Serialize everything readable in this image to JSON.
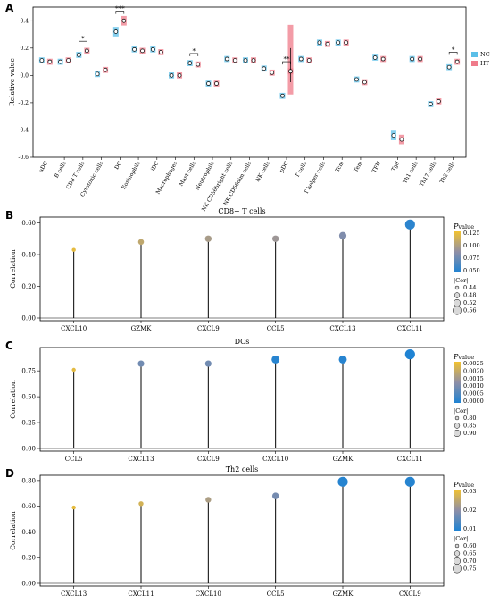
{
  "chart_data": [
    {
      "panel": "A",
      "type": "box",
      "ylabel": "Relative value",
      "ylim": [
        -0.6,
        0.5
      ],
      "yticks": [
        -0.6,
        -0.4,
        -0.2,
        0.0,
        0.2,
        0.4
      ],
      "categories": [
        "aDC",
        "B cells",
        "CD8 T cells",
        "Cytotoxic cells",
        "DC",
        "Eosinophils",
        "iDC",
        "Macrophages",
        "Mast cells",
        "Neutrophils",
        "NK CD56bright cells",
        "NK CD56dim cells",
        "NK cells",
        "pDC",
        "T cells",
        "T helper cells",
        "Tcm",
        "Tem",
        "TFH",
        "Tgd",
        "Th1 cells",
        "Th17 cells",
        "Th2 cells"
      ],
      "legend": {
        "position": "right",
        "entries": [
          "NC",
          "HT"
        ]
      },
      "colors": {
        "NC": "#5bbfe8",
        "HT": "#ef7b8a"
      },
      "series": [
        {
          "name": "NC",
          "values": [
            0.11,
            0.1,
            0.15,
            0.01,
            0.32,
            0.19,
            0.19,
            0.0,
            0.09,
            -0.06,
            0.12,
            0.11,
            0.05,
            -0.15,
            0.12,
            0.24,
            0.24,
            -0.03,
            0.13,
            -0.44,
            0.12,
            -0.21,
            0.06
          ]
        },
        {
          "name": "HT",
          "values": [
            0.1,
            0.11,
            0.18,
            0.04,
            0.4,
            0.18,
            0.17,
            0.0,
            0.08,
            -0.06,
            0.11,
            0.11,
            0.02,
            0.03,
            0.11,
            0.23,
            0.24,
            -0.05,
            0.12,
            -0.47,
            0.12,
            -0.19,
            0.1
          ]
        }
      ],
      "significance": [
        {
          "category": "CD8 T cells",
          "label": "*"
        },
        {
          "category": "DC",
          "label": "***"
        },
        {
          "category": "Mast cells",
          "label": "*"
        },
        {
          "category": "pDC",
          "label": "**"
        },
        {
          "category": "Th2 cells",
          "label": "*"
        }
      ]
    },
    {
      "panel": "B",
      "type": "lollipop",
      "title": "CD8+ T cells",
      "ylabel": "Correlation",
      "ylim": [
        0,
        0.62
      ],
      "yticks": [
        0.0,
        0.2,
        0.4,
        0.6
      ],
      "categories": [
        "CXCL10",
        "GZMK",
        "CXCL9",
        "CCL5",
        "CXCL13",
        "CXCL11"
      ],
      "values": [
        0.43,
        0.48,
        0.5,
        0.5,
        0.52,
        0.59
      ],
      "pvalues": [
        0.122,
        0.105,
        0.095,
        0.09,
        0.078,
        0.045
      ],
      "legend": {
        "pvalue_title": "Pvalue",
        "pvalue_ticks": [
          "0.125",
          "0.100",
          "0.075",
          "0.050"
        ],
        "pvalue_range": [
          0.04,
          0.128
        ],
        "cor_title": "|Cor|",
        "cor_ticks": [
          "0.44",
          "0.48",
          "0.52",
          "0.56"
        ]
      }
    },
    {
      "panel": "C",
      "type": "lollipop",
      "title": "DCs",
      "ylabel": "Correlation",
      "ylim": [
        0,
        0.95
      ],
      "yticks": [
        0.0,
        0.25,
        0.5,
        0.75
      ],
      "categories": [
        "CCL5",
        "CXCL13",
        "CXCL9",
        "CXCL10",
        "GZMK",
        "CXCL11"
      ],
      "values": [
        0.76,
        0.82,
        0.82,
        0.86,
        0.86,
        0.91
      ],
      "pvalues": [
        0.0025,
        0.001,
        0.001,
        0.0001,
        0.0001,
        0.0
      ],
      "legend": {
        "pvalue_title": "Pvalue",
        "pvalue_ticks": [
          "0.0025",
          "0.0020",
          "0.0015",
          "0.0010",
          "0.0005",
          "0.0000"
        ],
        "pvalue_range": [
          0.0,
          0.0027
        ],
        "cor_title": "|Cor|",
        "cor_ticks": [
          "0.80",
          "0.85",
          "0.90"
        ]
      }
    },
    {
      "panel": "D",
      "type": "lollipop",
      "title": "Th2 cells",
      "ylabel": "Correlation",
      "ylim": [
        0,
        0.82
      ],
      "yticks": [
        0.0,
        0.2,
        0.4,
        0.6,
        0.8
      ],
      "categories": [
        "CXCL13",
        "CXCL11",
        "CXCL10",
        "CCL5",
        "GZMK",
        "CXCL9"
      ],
      "values": [
        0.59,
        0.62,
        0.65,
        0.68,
        0.79,
        0.79
      ],
      "pvalues": [
        0.029,
        0.026,
        0.02,
        0.012,
        0.001,
        0.001
      ],
      "legend": {
        "pvalue_title": "Pvalue",
        "pvalue_ticks": [
          "0.03",
          "0.02",
          "0.01"
        ],
        "pvalue_range": [
          0.0,
          0.031
        ],
        "cor_title": "|Cor|",
        "cor_ticks": [
          "0.60",
          "0.65",
          "0.70",
          "0.75"
        ]
      }
    }
  ]
}
